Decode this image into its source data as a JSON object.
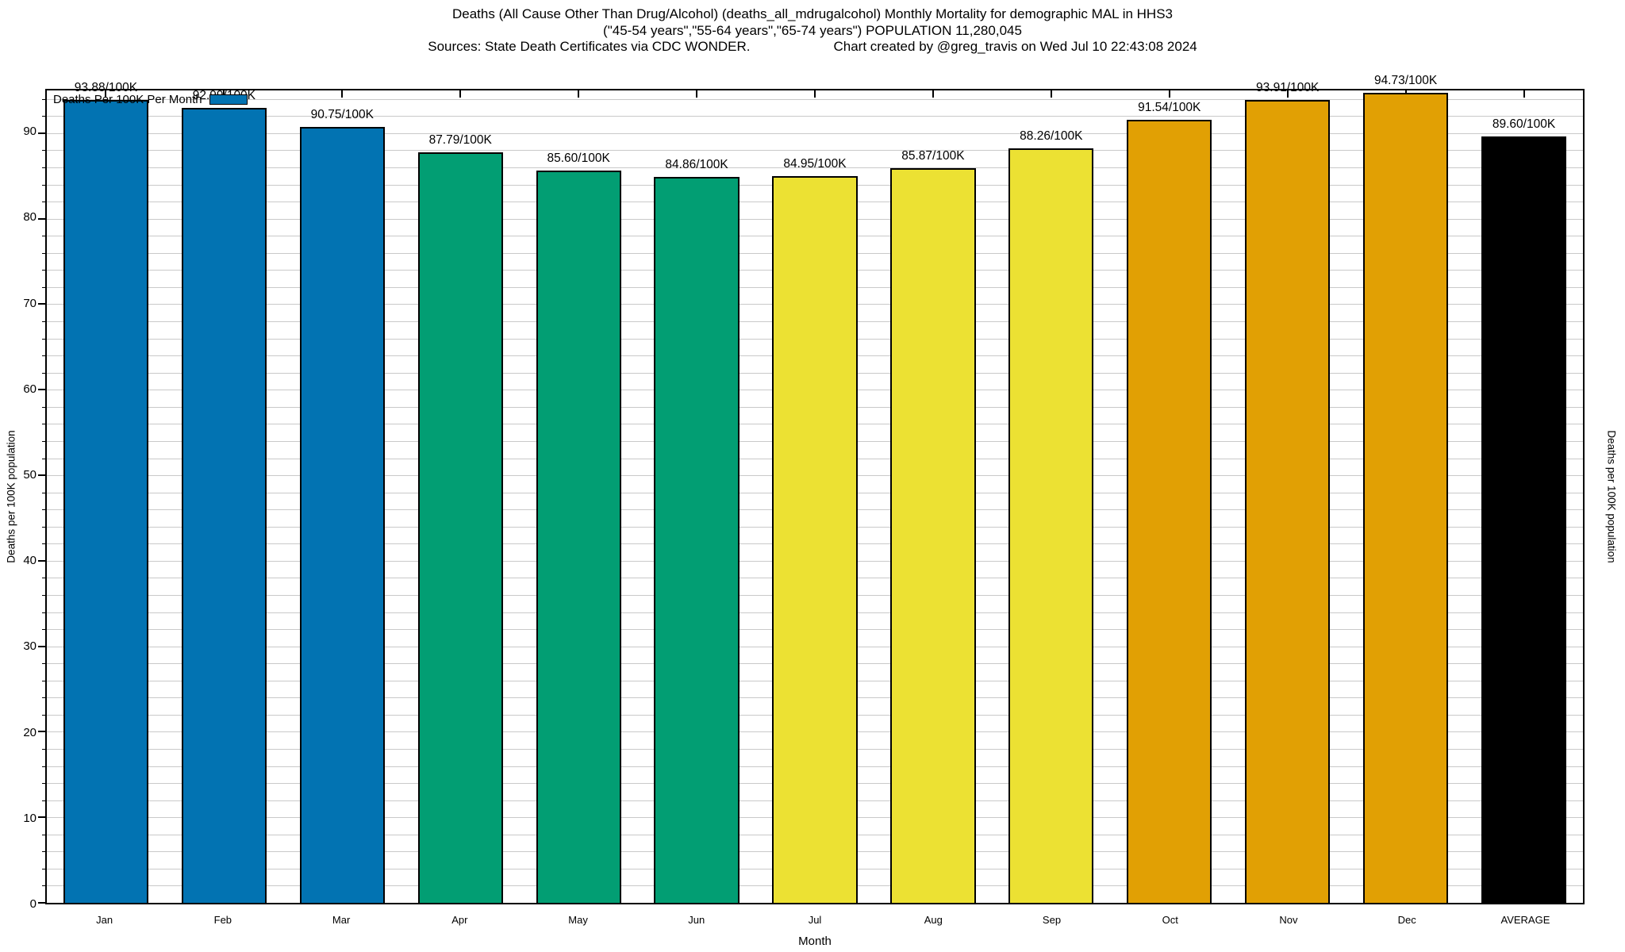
{
  "header": {
    "title_line1": "Deaths (All Cause Other Than Drug/Alcohol) (deaths_all_mdrugalcohol) Monthly Mortality for demographic MAL in HHS3",
    "title_line2": "(\"45-54 years\",\"55-64 years\",\"65-74 years\") POPULATION 11,280,045",
    "sources": "Sources: State Death Certificates via CDC WONDER.",
    "credit": "Chart created by @greg_travis on Wed Jul 10 22:43:08 2024"
  },
  "chart_data": {
    "type": "bar",
    "title": "Deaths (All Cause Other Than Drug/Alcohol) (deaths_all_mdrugalcohol) Monthly Mortality for demographic MAL in HHS3",
    "subtitle": "(\"45-54 years\",\"55-64 years\",\"65-74 years\") POPULATION 11,280,045",
    "categories": [
      "Jan",
      "Feb",
      "Mar",
      "Apr",
      "May",
      "Jun",
      "Jul",
      "Aug",
      "Sep",
      "Oct",
      "Nov",
      "Dec",
      "AVERAGE"
    ],
    "values": [
      93.88,
      92.99,
      90.75,
      87.79,
      85.6,
      84.86,
      84.95,
      85.87,
      88.26,
      91.54,
      93.91,
      94.73,
      89.6
    ],
    "value_labels": [
      "93.88/100K",
      "92.99/100K",
      "90.75/100K",
      "87.79/100K",
      "85.60/100K",
      "84.86/100K",
      "84.95/100K",
      "85.87/100K",
      "88.26/100K",
      "91.54/100K",
      "93.91/100K",
      "94.73/100K",
      "89.60/100K"
    ],
    "bar_colors": [
      "#0273b2",
      "#0273b2",
      "#0273b2",
      "#029e73",
      "#029e73",
      "#029e73",
      "#ece133",
      "#ece133",
      "#ece133",
      "#e1a004",
      "#e1a004",
      "#e1a004",
      "#000000"
    ],
    "legend_label": "Deaths Per 100K Per Month",
    "legend_color": "#0273b2",
    "xlabel": "Month",
    "ylabel": "Deaths per 100K population",
    "ylabel_right": "Deaths per 100K population",
    "ylim": [
      0,
      95
    ],
    "ytick_major_step": 10,
    "ytick_minor_step": 2,
    "grid": "horizontal, every 2 units",
    "legend_position": "top-left inside plot"
  },
  "colors": {
    "background": "#ffffff",
    "grid": "#c9c9c9",
    "axis": "#000000"
  }
}
